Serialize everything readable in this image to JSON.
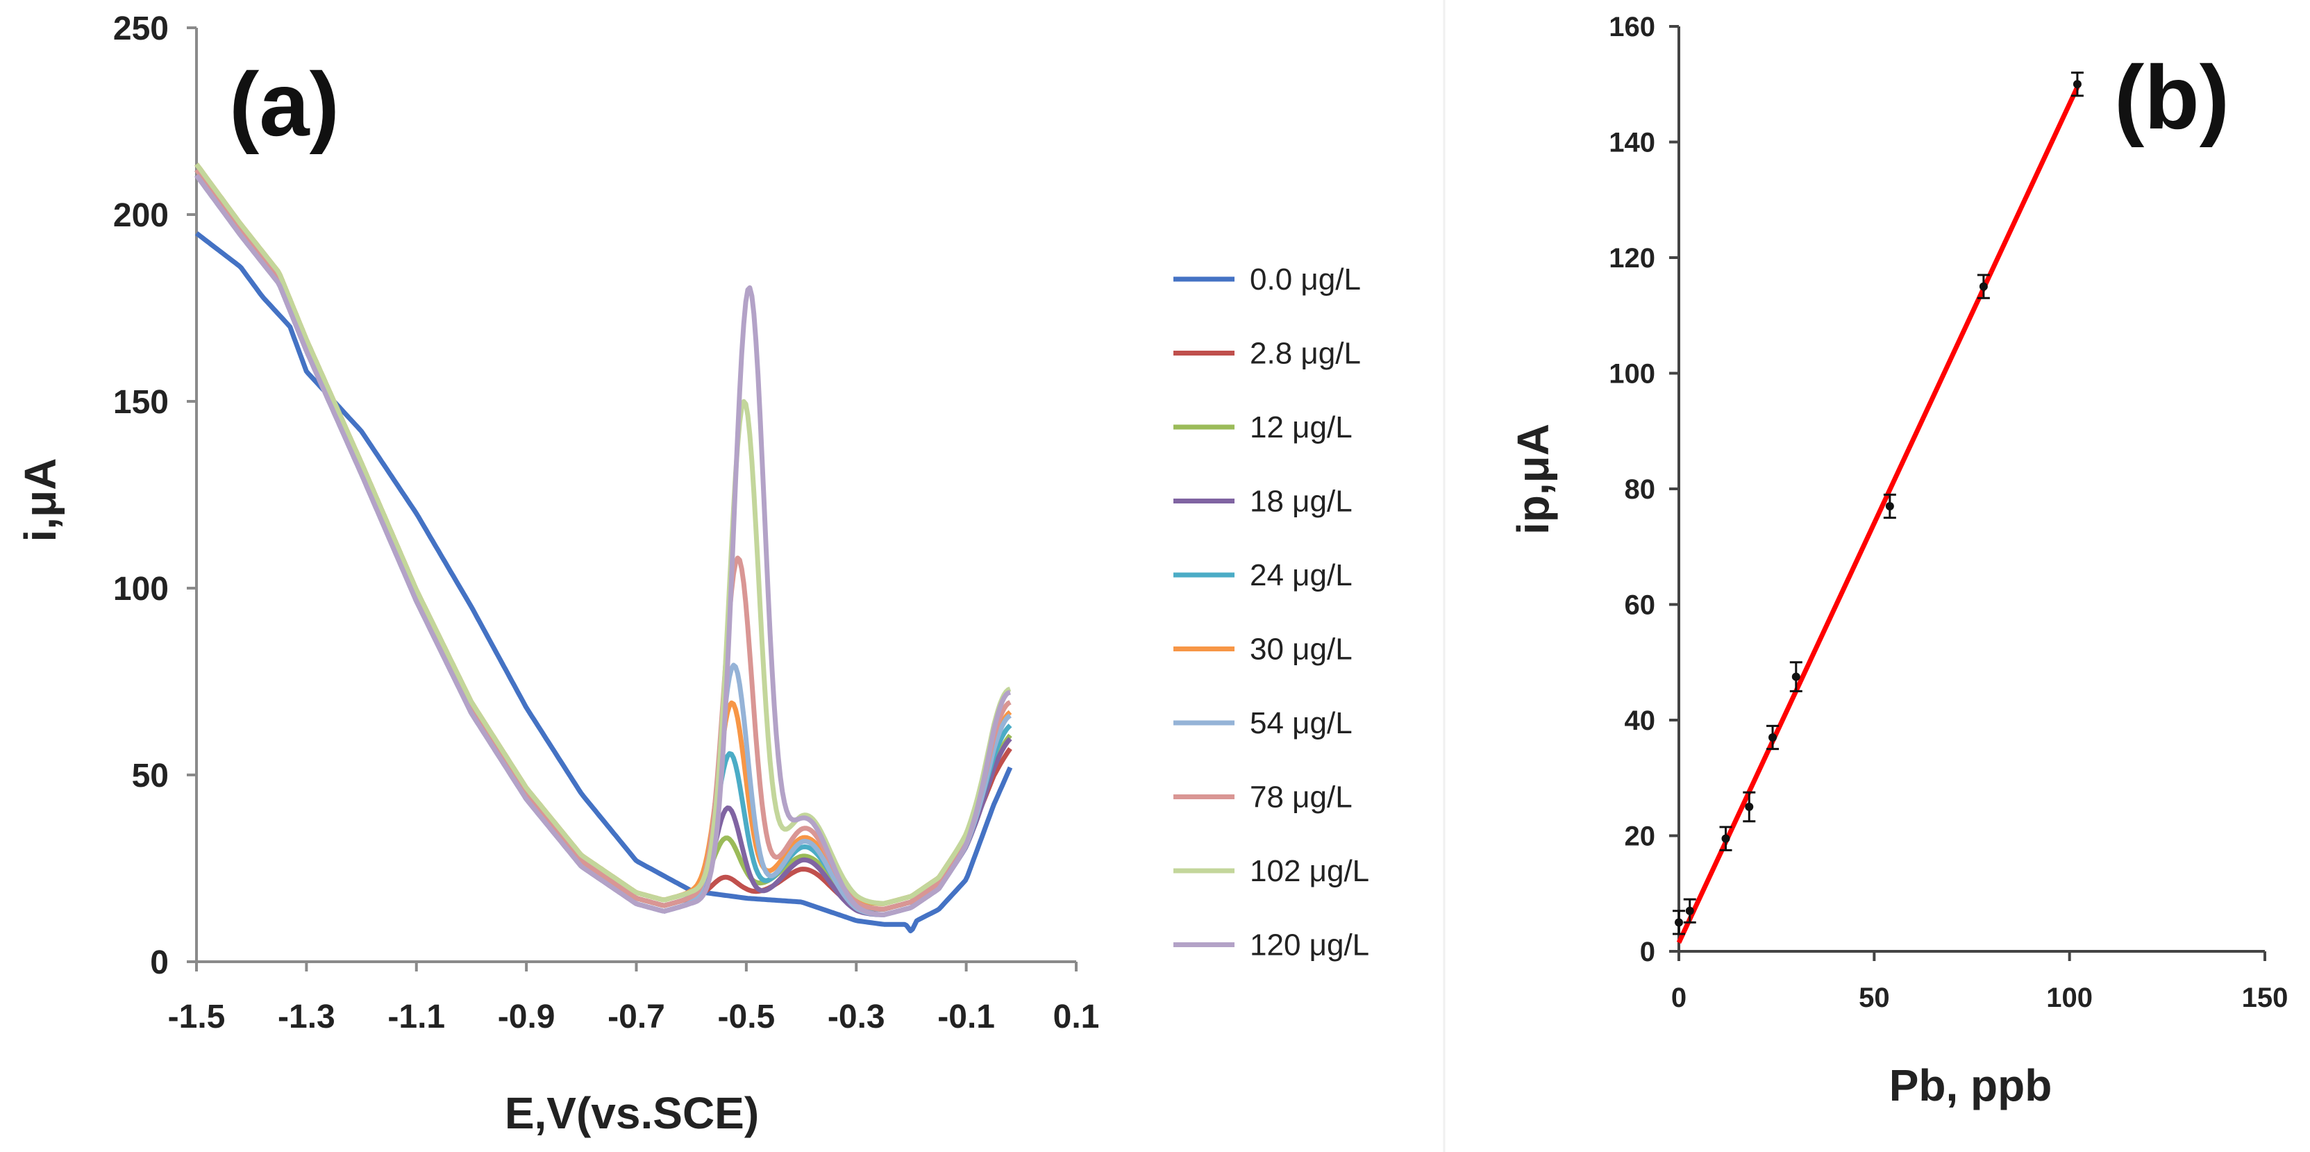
{
  "chart_data": [
    {
      "type": "line",
      "panel_label": "(a)",
      "xlabel": "E,V(vs.SCE)",
      "ylabel": "i,μA",
      "xlim": [
        -1.5,
        0.1
      ],
      "ylim": [
        0,
        250
      ],
      "xticks": [
        "-1.5",
        "-1.3",
        "-1.1",
        "-0.9",
        "-0.7",
        "-0.5",
        "-0.3",
        "-0.1",
        "0.1"
      ],
      "yticks": [
        "0",
        "50",
        "100",
        "150",
        "200",
        "250"
      ],
      "legend_position": "right",
      "series": [
        {
          "name": "0.0 μg/L",
          "color": "#4472C4",
          "peak": 0,
          "shoulder": 0
        },
        {
          "name": "2.8 μg/L",
          "color": "#C0504D",
          "peak": 22,
          "shoulder": 24
        },
        {
          "name": "12 μg/L",
          "color": "#9BBB59",
          "peak": 31,
          "shoulder": 26
        },
        {
          "name": "18 μg/L",
          "color": "#8064A2",
          "peak": 42,
          "shoulder": 28
        },
        {
          "name": "24 μg/L",
          "color": "#4BACC6",
          "peak": 55,
          "shoulder": 30
        },
        {
          "name": "30 μg/L",
          "color": "#F79646",
          "peak": 67,
          "shoulder": 31
        },
        {
          "name": "54 μg/L",
          "color": "#95B3D7",
          "peak": 80,
          "shoulder": 33
        },
        {
          "name": "78 μg/L",
          "color": "#D99694",
          "peak": 107,
          "shoulder": 35
        },
        {
          "name": "102 μg/L",
          "color": "#C3D69B",
          "peak": 147,
          "shoulder": 37
        },
        {
          "name": "120 μg/L",
          "color": "#B3A2C7",
          "peak": 180,
          "shoulder": 39
        }
      ]
    },
    {
      "type": "scatter",
      "panel_label": "(b)",
      "xlabel": "Pb, ppb",
      "ylabel": "ip,μA",
      "xlim": [
        0,
        150
      ],
      "ylim": [
        0,
        160
      ],
      "xticks": [
        "0",
        "50",
        "100",
        "150"
      ],
      "yticks": [
        "0",
        "20",
        "40",
        "60",
        "80",
        "100",
        "120",
        "140",
        "160"
      ],
      "x": [
        0,
        2.8,
        12,
        18,
        24,
        30,
        54,
        78,
        102
      ],
      "y": [
        5,
        7,
        19.5,
        25,
        37,
        47.5,
        77,
        115,
        150
      ],
      "errors": [
        2,
        2,
        2,
        2.5,
        2,
        2.5,
        2,
        2,
        2
      ],
      "fit_line": {
        "color": "#FF0000",
        "x": [
          0,
          102
        ],
        "y": [
          1.5,
          149.5
        ]
      }
    }
  ]
}
